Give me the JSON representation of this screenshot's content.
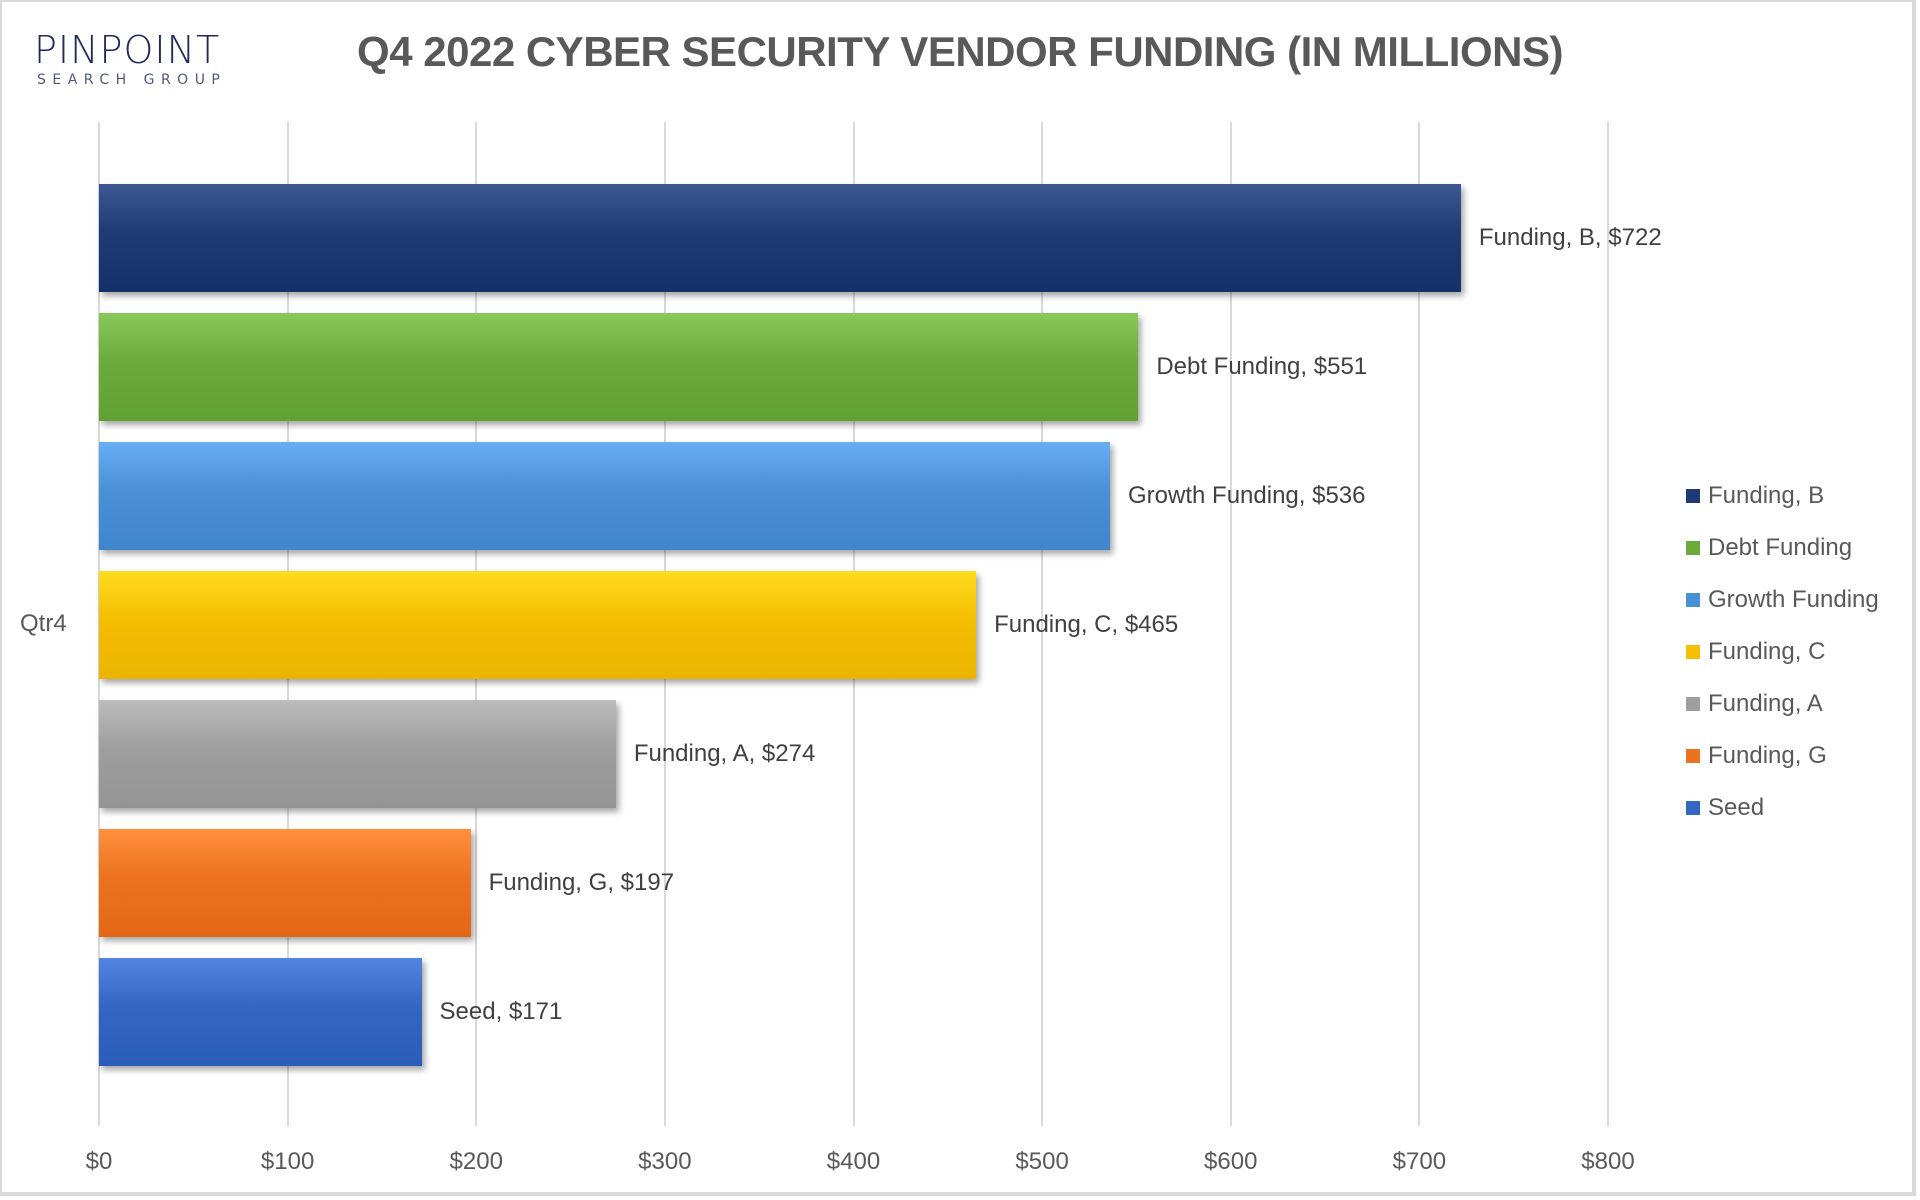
{
  "logo": {
    "main": "PINPOINT",
    "sub": "SEARCH GROUP"
  },
  "chart_data": {
    "type": "bar",
    "orientation": "horizontal",
    "title": "Q4 2022 CYBER SECURITY VENDOR FUNDING (IN MILLIONS)",
    "xlabel": "",
    "ylabel": "",
    "categories": [
      "Qtr4"
    ],
    "xlim": [
      0,
      800
    ],
    "x_ticks": [
      "$0",
      "$100",
      "$200",
      "$300",
      "$400",
      "$500",
      "$600",
      "$700",
      "$800"
    ],
    "grid": true,
    "legend_position": "right",
    "series": [
      {
        "name": "Funding, B",
        "values": [
          722
        ],
        "label": "Funding, B, $722",
        "color": "#1f3a75"
      },
      {
        "name": "Debt Funding",
        "values": [
          551
        ],
        "label": "Debt Funding, $551",
        "color": "#6aab3c"
      },
      {
        "name": "Growth Funding",
        "values": [
          536
        ],
        "label": "Growth Funding, $536",
        "color": "#4a90d6"
      },
      {
        "name": "Funding, C",
        "values": [
          465
        ],
        "label": "Funding, C, $465",
        "color": "#f5be00"
      },
      {
        "name": "Funding, A",
        "values": [
          274
        ],
        "label": "Funding, A, $274",
        "color": "#9e9e9e"
      },
      {
        "name": "Funding, G",
        "values": [
          197
        ],
        "label": "Funding, G, $197",
        "color": "#ec7220"
      },
      {
        "name": "Seed",
        "values": [
          171
        ],
        "label": "Seed, $171",
        "color": "#3566c4"
      }
    ]
  }
}
